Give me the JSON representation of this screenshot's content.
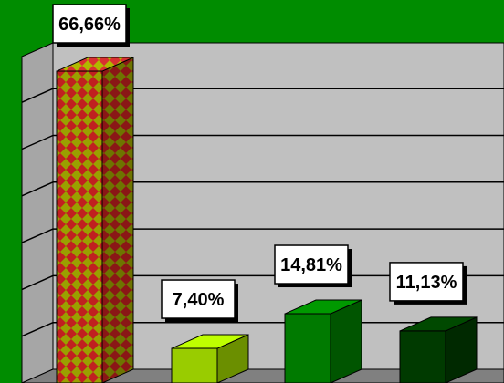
{
  "chart_data": {
    "type": "bar",
    "three_d": true,
    "categories": [
      "",
      "",
      "",
      "",
      ""
    ],
    "values": [
      66.66,
      7.4,
      14.81,
      11.13,
      0
    ],
    "data_labels": [
      "66,66%",
      "7,40%",
      "14,81%",
      "11,13%",
      ""
    ],
    "ylim": [
      0,
      70
    ],
    "grid": true,
    "legend": "none",
    "colors": {
      "background": "#008c00",
      "wall": "#c0c0c0",
      "floor": "#808080",
      "bars": [
        "#8c8c00",
        "#99cc00",
        "#007a00",
        "#003a00",
        "#009900"
      ],
      "pattern_light": "#9aa000",
      "pattern_dark": "#c02020"
    }
  }
}
